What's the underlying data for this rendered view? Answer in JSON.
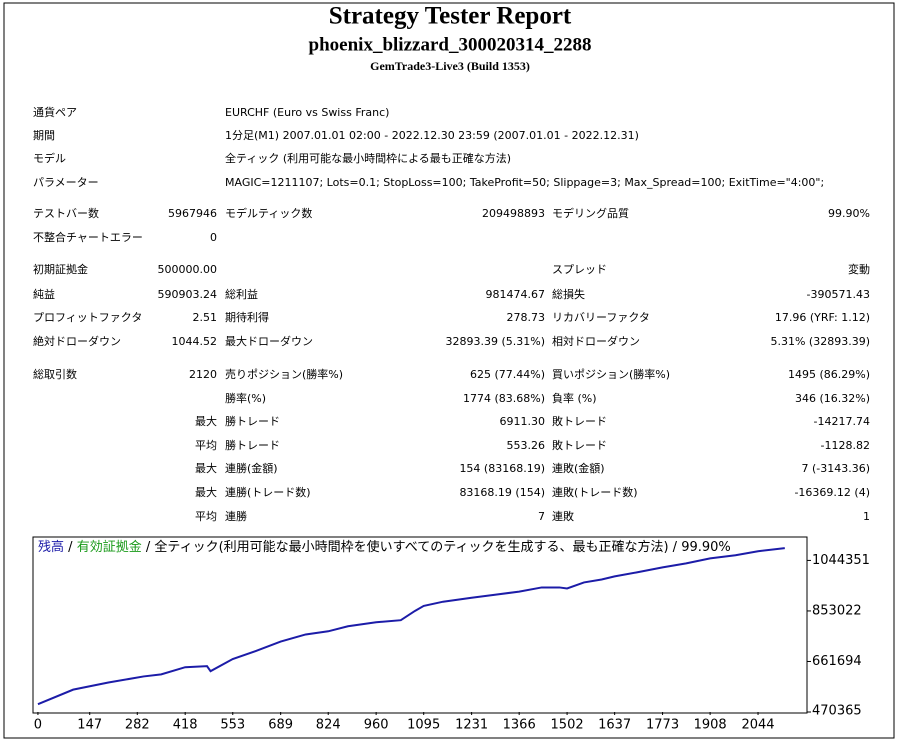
{
  "header": {
    "title": "Strategy Tester Report",
    "name": "phoenix_blizzard_300020314_2288",
    "server": "GemTrade3-Live3 (Build 1353)"
  },
  "table": {
    "rows": [
      [
        "通貨ペア",
        "EURCHF (Euro vs Swiss Franc)"
      ],
      [
        "期間",
        "1分足(M1) 2007.01.01 02:00 - 2022.12.30 23:59 (2007.01.01 - 2022.12.31)"
      ],
      [
        "モデル",
        "全ティック (利用可能な最小時間枠による最も正確な方法)"
      ],
      [
        "パラメーター",
        "MAGIC=1211107; Lots=0.1; StopLoss=100; TakeProfit=50; Slippage=3; Max_Spread=100; ExitTime=\"4:00\";"
      ],
      [
        "テストバー数",
        "5967946",
        "モデルティック数",
        "209498893",
        "モデリング品質",
        "99.90%"
      ],
      [
        "不整合チャートエラー",
        "0",
        null,
        null,
        null,
        null
      ],
      [
        "初期証拠金",
        "500000.00",
        null,
        null,
        "スプレッド",
        "変動"
      ],
      [
        "純益",
        "590903.24",
        "総利益",
        "981474.67",
        "総損失",
        "-390571.43"
      ],
      [
        "プロフィットファクタ",
        "2.51",
        "期待利得",
        "278.73",
        "リカバリーファクタ",
        "17.96 (YRF: 1.12)"
      ],
      [
        "絶対ドローダウン",
        "1044.52",
        "最大ドローダウン",
        "32893.39 (5.31%)",
        "相対ドローダウン",
        "5.31% (32893.39)"
      ],
      [
        "総取引数",
        "2120",
        "売りポジション(勝率%)",
        "625 (77.44%)",
        "買いポジション(勝率%)",
        "1495 (86.29%)"
      ],
      [
        null,
        null,
        "勝率(%)",
        "1774 (83.68%)",
        "負率 (%)",
        "346 (16.32%)"
      ],
      [
        null,
        "最大",
        "勝トレード",
        "6911.30",
        "敗トレード",
        "-14217.74"
      ],
      [
        null,
        "平均",
        "勝トレード",
        "553.26",
        "敗トレード",
        "-1128.82"
      ],
      [
        null,
        "最大",
        "連勝(金額)",
        "154 (83168.19)",
        "連敗(金額)",
        "7 (-3143.36)"
      ],
      [
        null,
        "最大",
        "連勝(トレード数)",
        "83168.19 (154)",
        "連敗(トレード数)",
        "-16369.12 (4)"
      ],
      [
        null,
        "平均",
        "連勝",
        "7",
        "連敗",
        "1"
      ]
    ]
  },
  "chart_data": {
    "type": "line",
    "title": "全ティック(利用可能な最小時間枠を使いすべてのティックを生成する、最も正確な方法)",
    "quality": "99.90%",
    "separator": "/",
    "equity_name": "有効証拠金",
    "equity_color": "#1a9a1a",
    "x": [
      0,
      100,
      200,
      300,
      350,
      418,
      480,
      490,
      553,
      620,
      689,
      760,
      824,
      880,
      960,
      1030,
      1070,
      1095,
      1150,
      1231,
      1300,
      1366,
      1430,
      1480,
      1502,
      1550,
      1600,
      1637,
      1700,
      1773,
      1840,
      1908,
      1980,
      2044,
      2120
    ],
    "series": [
      {
        "name": "残高",
        "color": "#1c1ca8",
        "values": [
          500000,
          555000,
          582000,
          605000,
          613000,
          640000,
          644000,
          625000,
          671000,
          702000,
          737000,
          764000,
          776000,
          795000,
          810000,
          818000,
          853000,
          872000,
          888000,
          903000,
          915000,
          926000,
          942000,
          942000,
          938000,
          961000,
          972000,
          984000,
          999000,
          1018000,
          1033000,
          1052000,
          1064000,
          1079000,
          1090903
        ]
      }
    ],
    "xlim": [
      -14,
      2183
    ],
    "ylim": [
      470365,
      1133000
    ],
    "xticks": [
      0,
      147,
      282,
      418,
      553,
      689,
      824,
      960,
      1095,
      1231,
      1366,
      1502,
      1637,
      1773,
      1908,
      2044
    ],
    "yticks": [
      470365,
      661694,
      853022,
      1044351
    ]
  }
}
